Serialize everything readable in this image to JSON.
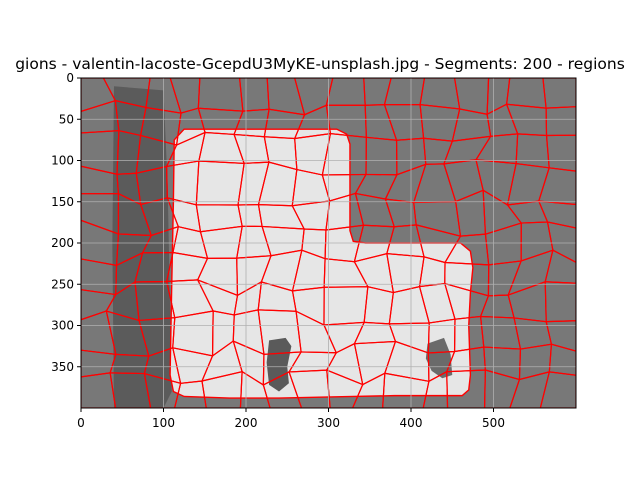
{
  "chart_data": {
    "type": "heatmap",
    "title": "gions - valentin-lacoste-GcepdU3MyKE-unsplash.jpg - Segments: 200 - regions",
    "xlabel": "",
    "ylabel": "",
    "xlim": [
      0,
      600
    ],
    "ylim": [
      400,
      0
    ],
    "x_ticks": [
      0,
      100,
      200,
      300,
      400,
      500
    ],
    "y_ticks": [
      0,
      50,
      100,
      150,
      200,
      250,
      300,
      350
    ],
    "grid": true,
    "image_size": {
      "width": 600,
      "height": 400
    },
    "segments": 200,
    "boundary_color": "#ff0000",
    "background_tone": "#787878",
    "dark_tone": "#444444",
    "region_light_tone": "#e6e6e6",
    "highlight_tone": "#f7f7f7"
  }
}
